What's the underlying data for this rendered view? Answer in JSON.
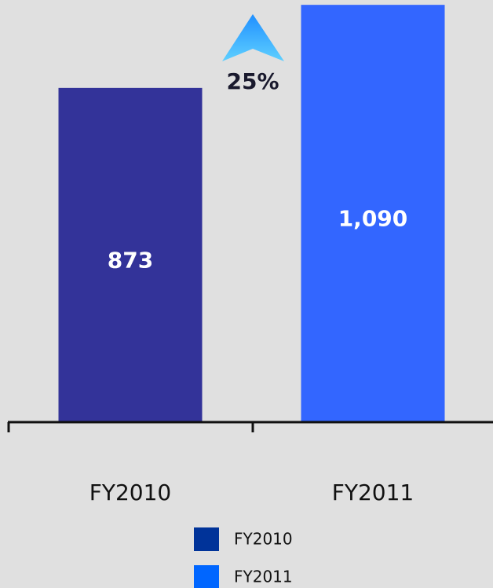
{
  "chart_data": {
    "type": "bar",
    "categories": [
      "FY2010",
      "FY2011"
    ],
    "values": [
      873,
      1090
    ],
    "value_labels": [
      "873",
      "1,090"
    ],
    "colors": [
      "#333399",
      "#3366ff"
    ],
    "annotation": "25%",
    "legend": {
      "entries": [
        {
          "name": "FY2010",
          "color": "#003399"
        },
        {
          "name": "FY2011",
          "color": "#0066ff"
        }
      ]
    }
  }
}
